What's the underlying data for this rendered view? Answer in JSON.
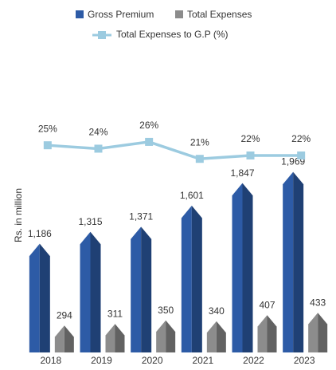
{
  "chart_data": {
    "type": "bar_line",
    "y_axis_label": "Rs. in million",
    "categories": [
      "2018",
      "2019",
      "2020",
      "2021",
      "2022",
      "2023"
    ],
    "series": [
      {
        "name": "Gross Premium",
        "color": "#2d5ba6",
        "values": [
          1186,
          1315,
          1371,
          1601,
          1847,
          1969
        ],
        "value_labels": [
          "1,186",
          "1,315",
          "1,371",
          "1,601",
          "1,847",
          "1,969"
        ]
      },
      {
        "name": "Total Expenses",
        "color": "#8c8c8c",
        "values": [
          294,
          311,
          350,
          340,
          407,
          433
        ]
      },
      {
        "name": "Total Expenses to G.P (%)",
        "color": "#9ccbe0",
        "axis": "y2",
        "type": "line",
        "values": [
          25,
          24,
          26,
          21,
          22,
          22
        ],
        "value_labels": [
          "25%",
          "24%",
          "26%",
          "21%",
          "22%",
          "22%"
        ]
      }
    ],
    "ylim": [
      0,
      2200
    ],
    "y2lim": [
      -36,
      23.4
    ],
    "legend": "top"
  }
}
